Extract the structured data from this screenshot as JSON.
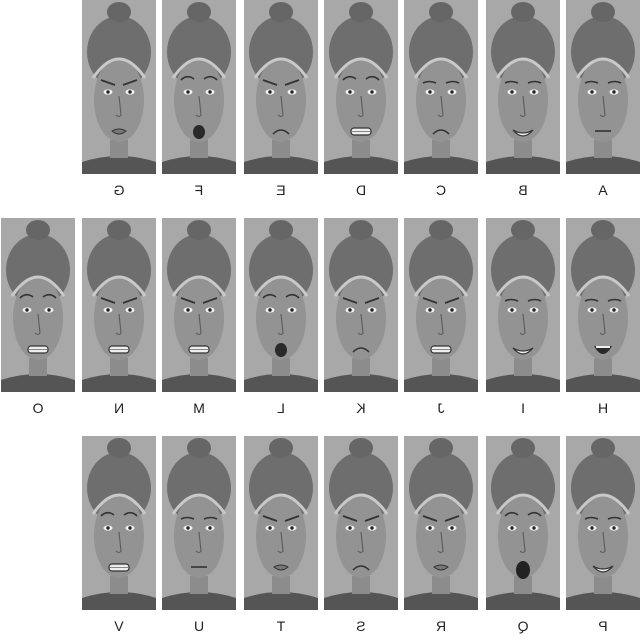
{
  "panels": [
    {
      "label": "A",
      "expression": "neutral"
    },
    {
      "label": "B",
      "expression": "smile-teeth"
    },
    {
      "label": "C",
      "expression": "sad"
    },
    {
      "label": "D",
      "expression": "fear-teeth"
    },
    {
      "label": "E",
      "expression": "frown"
    },
    {
      "label": "F",
      "expression": "surprise"
    },
    {
      "label": "G",
      "expression": "pout"
    },
    {
      "label": "H",
      "expression": "open-smile"
    },
    {
      "label": "I",
      "expression": "smile-teeth"
    },
    {
      "label": "J",
      "expression": "grimace"
    },
    {
      "label": "K",
      "expression": "frown"
    },
    {
      "label": "L",
      "expression": "surprise"
    },
    {
      "label": "M",
      "expression": "grimace"
    },
    {
      "label": "N",
      "expression": "grimace"
    },
    {
      "label": "O",
      "expression": "fear-teeth"
    },
    {
      "label": "P",
      "expression": "smile-teeth"
    },
    {
      "label": "Q",
      "expression": "scream"
    },
    {
      "label": "R",
      "expression": "pout"
    },
    {
      "label": "S",
      "expression": "frown"
    },
    {
      "label": "T",
      "expression": "pout"
    },
    {
      "label": "U",
      "expression": "neutral"
    },
    {
      "label": "V",
      "expression": "fear-teeth"
    }
  ]
}
